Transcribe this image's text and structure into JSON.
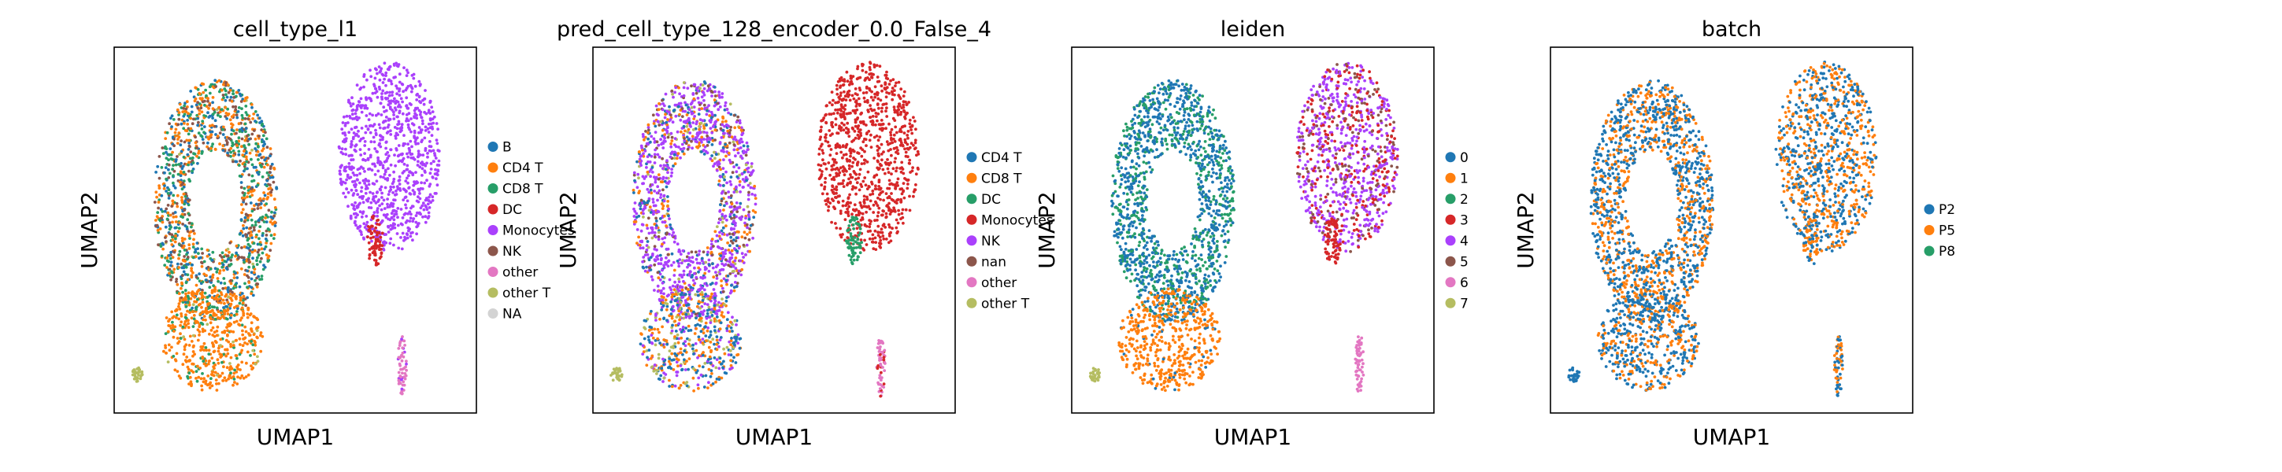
{
  "chart_data": [
    {
      "type": "scatter",
      "title": "cell_type_l1",
      "xlabel": "UMAP1",
      "ylabel": "UMAP2",
      "legend_position": "right",
      "legend": [
        {
          "label": "B",
          "color": "#1f77b4"
        },
        {
          "label": "CD4 T",
          "color": "#ff7f0e"
        },
        {
          "label": "CD8 T",
          "color": "#279e68"
        },
        {
          "label": "DC",
          "color": "#d62728"
        },
        {
          "label": "Monocytes",
          "color": "#aa40fc"
        },
        {
          "label": "NK",
          "color": "#8c564b"
        },
        {
          "label": "other",
          "color": "#e377c2"
        },
        {
          "label": "other T",
          "color": "#b5bd61"
        },
        {
          "label": "NA",
          "color": "#d3d3d3"
        }
      ],
      "regions": [
        {
          "name": "main-cluster",
          "mix": [
            {
              "c": 0,
              "w": 0.22
            },
            {
              "c": 1,
              "w": 0.33
            },
            {
              "c": 2,
              "w": 0.25
            },
            {
              "c": 5,
              "w": 0.18
            },
            {
              "c": 7,
              "w": 0.02
            }
          ]
        },
        {
          "name": "lower-cluster",
          "mix": [
            {
              "c": 1,
              "w": 0.82
            },
            {
              "c": 2,
              "w": 0.12
            },
            {
              "c": 7,
              "w": 0.06
            }
          ]
        },
        {
          "name": "right-cluster",
          "mix": [
            {
              "c": 4,
              "w": 1.0
            }
          ]
        },
        {
          "name": "right-tail",
          "mix": [
            {
              "c": 3,
              "w": 1.0
            }
          ]
        },
        {
          "name": "small-left",
          "mix": [
            {
              "c": 7,
              "w": 1.0
            }
          ]
        },
        {
          "name": "small-bottom",
          "mix": [
            {
              "c": 6,
              "w": 0.85
            },
            {
              "c": 4,
              "w": 0.15
            }
          ]
        }
      ]
    },
    {
      "type": "scatter",
      "title": "pred_cell_type_128_encoder_0.0_False_4",
      "xlabel": "UMAP1",
      "ylabel": "UMAP2",
      "legend_position": "right",
      "legend": [
        {
          "label": "CD4 T",
          "color": "#1f77b4"
        },
        {
          "label": "CD8 T",
          "color": "#ff7f0e"
        },
        {
          "label": "DC",
          "color": "#279e68"
        },
        {
          "label": "Monocytes",
          "color": "#d62728"
        },
        {
          "label": "NK",
          "color": "#aa40fc"
        },
        {
          "label": "nan",
          "color": "#8c564b"
        },
        {
          "label": "other",
          "color": "#e377c2"
        },
        {
          "label": "other T",
          "color": "#b5bd61"
        }
      ],
      "regions": [
        {
          "name": "main-cluster",
          "mix": [
            {
              "c": 4,
              "w": 0.55
            },
            {
              "c": 0,
              "w": 0.15
            },
            {
              "c": 1,
              "w": 0.15
            },
            {
              "c": 5,
              "w": 0.1
            },
            {
              "c": 7,
              "w": 0.05
            }
          ]
        },
        {
          "name": "lower-cluster",
          "mix": [
            {
              "c": 0,
              "w": 0.35
            },
            {
              "c": 1,
              "w": 0.3
            },
            {
              "c": 4,
              "w": 0.2
            },
            {
              "c": 7,
              "w": 0.15
            }
          ]
        },
        {
          "name": "right-cluster",
          "mix": [
            {
              "c": 3,
              "w": 1.0
            }
          ]
        },
        {
          "name": "right-tail",
          "mix": [
            {
              "c": 2,
              "w": 1.0
            }
          ]
        },
        {
          "name": "small-left",
          "mix": [
            {
              "c": 7,
              "w": 1.0
            }
          ]
        },
        {
          "name": "small-bottom",
          "mix": [
            {
              "c": 6,
              "w": 0.8
            },
            {
              "c": 3,
              "w": 0.2
            }
          ]
        }
      ]
    },
    {
      "type": "scatter",
      "title": "leiden",
      "xlabel": "UMAP1",
      "ylabel": "UMAP2",
      "legend_position": "right",
      "legend": [
        {
          "label": "0",
          "color": "#1f77b4"
        },
        {
          "label": "1",
          "color": "#ff7f0e"
        },
        {
          "label": "2",
          "color": "#279e68"
        },
        {
          "label": "3",
          "color": "#d62728"
        },
        {
          "label": "4",
          "color": "#aa40fc"
        },
        {
          "label": "5",
          "color": "#8c564b"
        },
        {
          "label": "6",
          "color": "#e377c2"
        },
        {
          "label": "7",
          "color": "#b5bd61"
        }
      ],
      "regions": [
        {
          "name": "main-cluster",
          "mix": [
            {
              "c": 0,
              "w": 0.6
            },
            {
              "c": 2,
              "w": 0.4
            }
          ]
        },
        {
          "name": "lower-cluster",
          "mix": [
            {
              "c": 1,
              "w": 0.9
            },
            {
              "c": 0,
              "w": 0.1
            }
          ]
        },
        {
          "name": "right-cluster",
          "mix": [
            {
              "c": 4,
              "w": 0.6
            },
            {
              "c": 3,
              "w": 0.25
            },
            {
              "c": 5,
              "w": 0.15
            }
          ]
        },
        {
          "name": "right-tail",
          "mix": [
            {
              "c": 3,
              "w": 1.0
            }
          ]
        },
        {
          "name": "small-left",
          "mix": [
            {
              "c": 7,
              "w": 1.0
            }
          ]
        },
        {
          "name": "small-bottom",
          "mix": [
            {
              "c": 6,
              "w": 1.0
            }
          ]
        }
      ]
    },
    {
      "type": "scatter",
      "title": "batch",
      "xlabel": "UMAP1",
      "ylabel": "UMAP2",
      "legend_position": "right",
      "legend": [
        {
          "label": "P2",
          "color": "#1f77b4"
        },
        {
          "label": "P5",
          "color": "#ff7f0e"
        },
        {
          "label": "P8",
          "color": "#279e68"
        }
      ],
      "regions": [
        {
          "name": "main-cluster",
          "mix": [
            {
              "c": 0,
              "w": 0.6
            },
            {
              "c": 1,
              "w": 0.4
            }
          ]
        },
        {
          "name": "lower-cluster",
          "mix": [
            {
              "c": 0,
              "w": 0.6
            },
            {
              "c": 1,
              "w": 0.4
            }
          ]
        },
        {
          "name": "right-cluster",
          "mix": [
            {
              "c": 0,
              "w": 0.5
            },
            {
              "c": 1,
              "w": 0.5
            }
          ]
        },
        {
          "name": "right-tail",
          "mix": [
            {
              "c": 0,
              "w": 0.5
            },
            {
              "c": 1,
              "w": 0.5
            }
          ]
        },
        {
          "name": "small-left",
          "mix": [
            {
              "c": 0,
              "w": 1.0
            }
          ]
        },
        {
          "name": "small-bottom",
          "mix": [
            {
              "c": 0,
              "w": 0.6
            },
            {
              "c": 1,
              "w": 0.4
            }
          ]
        }
      ]
    }
  ]
}
